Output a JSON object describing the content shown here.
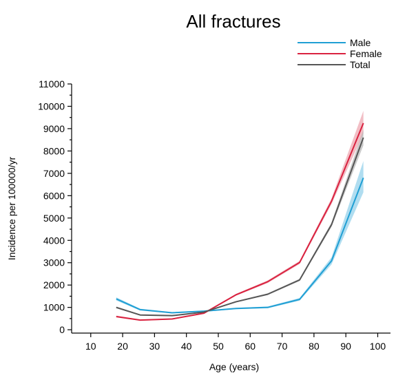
{
  "chart_data": {
    "type": "line",
    "title": "All fractures",
    "xlabel": "Age (years)",
    "ylabel": "Incidence per 100000/yr",
    "xlim": [
      4,
      104
    ],
    "ylim": [
      -150,
      11000
    ],
    "x_ticks": [
      10,
      20,
      30,
      40,
      50,
      60,
      70,
      80,
      90,
      100
    ],
    "y_ticks": [
      0,
      1000,
      2000,
      3000,
      4000,
      5000,
      6000,
      7000,
      8000,
      9000,
      10000,
      11000
    ],
    "x_tick_labels": [
      "10",
      "20",
      "30",
      "40",
      "50",
      "60",
      "70",
      "80",
      "90",
      "100"
    ],
    "y_tick_labels": [
      "0",
      "1000",
      "2000",
      "3000",
      "4000",
      "5000",
      "6000",
      "7000",
      "8000",
      "9000",
      "10000",
      "11000"
    ],
    "legend_position": "top-right",
    "grid": false,
    "x": [
      18,
      25.5,
      35.5,
      45.5,
      55.5,
      65.5,
      75.5,
      85.5,
      95.5
    ],
    "series": [
      {
        "name": "Male",
        "color": "#1f9fd4",
        "band_color": "#8fcfea",
        "values": [
          1380,
          900,
          760,
          830,
          950,
          1000,
          1360,
          3080,
          6800
        ],
        "lower": [
          1310,
          860,
          730,
          800,
          920,
          960,
          1300,
          2920,
          6150
        ],
        "upper": [
          1450,
          940,
          790,
          860,
          980,
          1040,
          1420,
          3240,
          7550
        ]
      },
      {
        "name": "Female",
        "color": "#d9213f",
        "band_color": "#eca2ad",
        "values": [
          590,
          430,
          480,
          740,
          1560,
          2150,
          3010,
          5750,
          9250
        ],
        "lower": [
          550,
          400,
          455,
          715,
          1520,
          2090,
          2940,
          5620,
          8780
        ],
        "upper": [
          630,
          460,
          505,
          765,
          1600,
          2210,
          3080,
          5880,
          9800
        ]
      },
      {
        "name": "Total",
        "color": "#555555",
        "band_color": "#b5b5b5",
        "values": [
          1000,
          660,
          630,
          790,
          1250,
          1590,
          2230,
          4700,
          8600
        ],
        "lower": [
          960,
          635,
          610,
          770,
          1220,
          1550,
          2180,
          4600,
          8250
        ],
        "upper": [
          1040,
          685,
          650,
          810,
          1280,
          1630,
          2280,
          4800,
          8950
        ]
      }
    ]
  }
}
